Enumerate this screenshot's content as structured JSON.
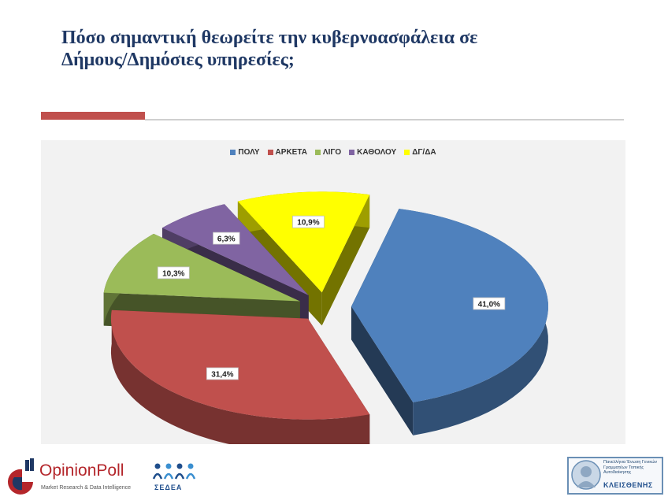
{
  "slide": {
    "title_line1": "Πόσο σημαντική θεωρείτε την κυβερνοασφάλεια σε",
    "title_line2": "Δήμους/Δημόσιες υπηρεσίες;"
  },
  "chart_data": {
    "type": "pie",
    "title": "",
    "categories": [
      "ΠΟΛΥ",
      "ΑΡΚΕΤΑ",
      "ΛΙΓΟ",
      "ΚΑΘΟΛΟΥ",
      "ΔΓ/ΔΑ"
    ],
    "values": [
      41.0,
      31.4,
      10.3,
      6.3,
      10.9
    ],
    "labels": [
      "41,0%",
      "31,4%",
      "10,3%",
      "6,3%",
      "10,9%"
    ],
    "colors": [
      "#4f81bd",
      "#c0504d",
      "#9bbb59",
      "#8064a2",
      "#ffff00"
    ],
    "style": "3d-exploded",
    "legend_position": "top"
  },
  "footer": {
    "opinionpoll_name": "OpinionPoll",
    "opinionpoll_tagline": "Market Research & Data Intelligence",
    "sedea_name": "ΣΕΔΕΑ",
    "kleisthenis_name": "ΚΛΕΙΣΘΕΝΗΣ",
    "kleisthenis_subtitle": "Πανελλήνια Ένωση Γενικών Γραμματέων Τοπικής Αυτοδιοίκησης"
  }
}
